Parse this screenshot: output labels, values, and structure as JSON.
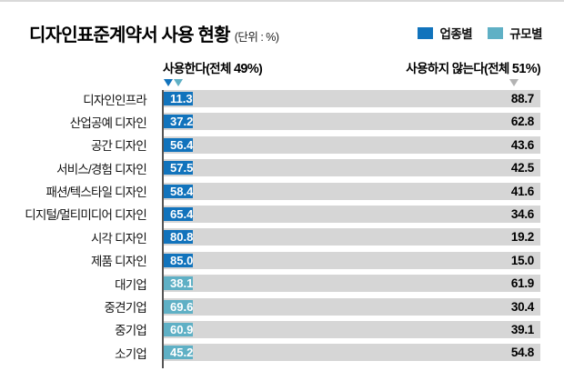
{
  "title": "디자인표준계약서 사용 현황",
  "unit_label": "(단위 : %)",
  "legend": [
    {
      "label": "업종별",
      "color": "#1173bc"
    },
    {
      "label": "규모별",
      "color": "#5fb0c5"
    }
  ],
  "headers": {
    "use": {
      "prefix": "사용한다(전체 ",
      "strong": "49%",
      "suffix": ")"
    },
    "not_use": {
      "prefix": "사용하지 않는다(전체 ",
      "strong": "51%",
      "suffix": ")"
    }
  },
  "colors": {
    "industry": "#1173bc",
    "size": "#5fb0c5",
    "track": "#d6d6d6",
    "axis_line": "#555555",
    "marker_gray": "#b3b3b3"
  },
  "chart_data": {
    "type": "bar",
    "orientation": "horizontal-stacked",
    "title": "디자인표준계약서 사용 현황",
    "unit": "%",
    "xlim": [
      0,
      100
    ],
    "legend_position": "top-right",
    "grid": false,
    "categories": [
      "디자인인프라",
      "산업공예 디자인",
      "공간 디자인",
      "서비스/경험 디자인",
      "패션/텍스타일 디자인",
      "디지털/멀티미디어 디자인",
      "시각 디자인",
      "제품 디자인",
      "대기업",
      "중견기업",
      "중기업",
      "소기업"
    ],
    "groups": [
      "업종별",
      "업종별",
      "업종별",
      "업종별",
      "업종별",
      "업종별",
      "업종별",
      "업종별",
      "규모별",
      "규모별",
      "규모별",
      "규모별"
    ],
    "group_colors": {
      "업종별": "#1173bc",
      "규모별": "#5fb0c5"
    },
    "series": [
      {
        "name": "사용한다",
        "total": 49,
        "values": [
          11.3,
          37.2,
          56.4,
          57.5,
          58.4,
          65.4,
          80.8,
          85.0,
          38.1,
          69.6,
          60.9,
          45.2
        ]
      },
      {
        "name": "사용하지 않는다",
        "total": 51,
        "values": [
          88.7,
          62.8,
          43.6,
          42.5,
          41.6,
          34.6,
          19.2,
          15.0,
          61.9,
          30.4,
          39.1,
          54.8
        ]
      }
    ]
  }
}
